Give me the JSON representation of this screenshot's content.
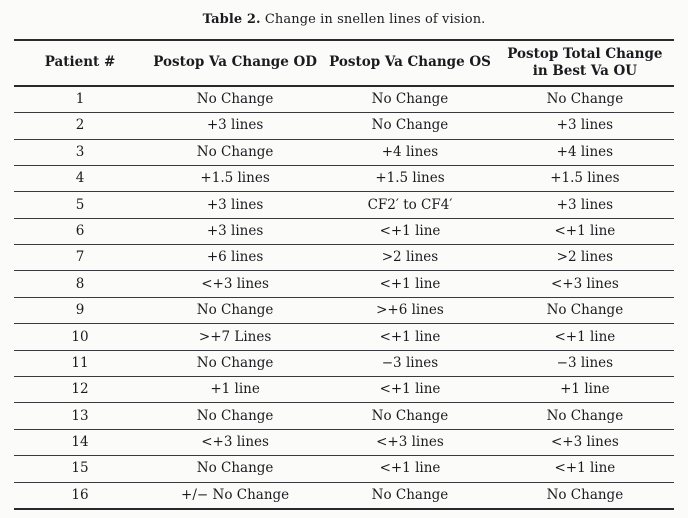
{
  "caption": {
    "label": "Table 2.",
    "text": "Change in snellen lines of vision."
  },
  "table": {
    "columns": [
      "Patient #",
      "Postop Va Change OD",
      "Postop Va Change OS",
      "Postop Total Change in Best Va OU"
    ],
    "rows": [
      [
        "1",
        "No Change",
        "No Change",
        "No Change"
      ],
      [
        "2",
        "+3 lines",
        "No Change",
        "+3 lines"
      ],
      [
        "3",
        "No Change",
        "+4 lines",
        "+4 lines"
      ],
      [
        "4",
        "+1.5 lines",
        "+1.5 lines",
        "+1.5 lines"
      ],
      [
        "5",
        "+3 lines",
        "CF2′ to CF4′",
        "+3 lines"
      ],
      [
        "6",
        "+3 lines",
        "<+1 line",
        "<+1 line"
      ],
      [
        "7",
        "+6 lines",
        ">2 lines",
        ">2 lines"
      ],
      [
        "8",
        "<+3 lines",
        "<+1 line",
        "<+3 lines"
      ],
      [
        "9",
        "No Change",
        ">+6 lines",
        "No Change"
      ],
      [
        "10",
        ">+7 Lines",
        "<+1 line",
        "<+1 line"
      ],
      [
        "11",
        "No Change",
        "−3 lines",
        "−3 lines"
      ],
      [
        "12",
        "+1 line",
        "<+1 line",
        "+1 line"
      ],
      [
        "13",
        "No Change",
        "No Change",
        "No Change"
      ],
      [
        "14",
        "<+3 lines",
        "<+3 lines",
        "<+3 lines"
      ],
      [
        "15",
        "No Change",
        "<+1 line",
        "<+1 line"
      ],
      [
        "16",
        "+/− No Change",
        "No Change",
        "No Change"
      ]
    ]
  }
}
